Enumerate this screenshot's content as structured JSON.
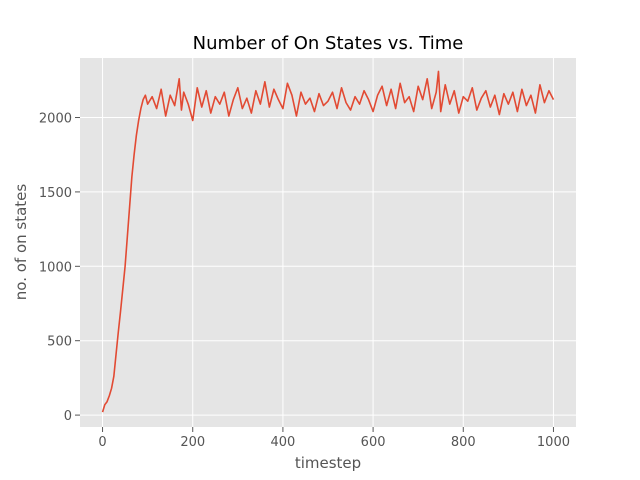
{
  "chart_data": {
    "type": "line",
    "title": "Number of On States vs. Time",
    "xlabel": "timestep",
    "ylabel": "no. of on states",
    "xlim": [
      -50,
      1050
    ],
    "ylim": [
      -80,
      2400
    ],
    "x_ticks": [
      0,
      200,
      400,
      600,
      800,
      1000
    ],
    "x_tick_labels": [
      "0",
      "200",
      "400",
      "600",
      "800",
      "1000"
    ],
    "y_ticks": [
      0,
      500,
      1000,
      1500,
      2000
    ],
    "y_tick_labels": [
      "0",
      "500",
      "1000",
      "1500",
      "2000"
    ],
    "grid": true,
    "legend": "none",
    "colors": {
      "plot_background": "#e5e5e5",
      "grid": "#ffffff",
      "line": "#e24a33",
      "tick_text": "#555555",
      "title_text": "#000000"
    },
    "series": [
      {
        "x": [
          0,
          5,
          10,
          15,
          20,
          25,
          30,
          35,
          40,
          45,
          50,
          55,
          60,
          65,
          70,
          75,
          80,
          85,
          90,
          95,
          100,
          110,
          120,
          130,
          140,
          150,
          160,
          170,
          175,
          180,
          190,
          200,
          210,
          220,
          230,
          240,
          250,
          260,
          270,
          280,
          290,
          300,
          310,
          320,
          330,
          340,
          350,
          360,
          370,
          380,
          390,
          400,
          410,
          420,
          430,
          440,
          450,
          460,
          470,
          480,
          490,
          500,
          510,
          520,
          530,
          540,
          550,
          560,
          570,
          580,
          590,
          600,
          610,
          620,
          630,
          640,
          650,
          660,
          670,
          680,
          690,
          700,
          710,
          720,
          730,
          740,
          745,
          750,
          760,
          770,
          780,
          790,
          800,
          810,
          820,
          830,
          840,
          850,
          860,
          870,
          880,
          890,
          900,
          910,
          920,
          930,
          940,
          950,
          960,
          970,
          980,
          990,
          1000
        ],
        "values": [
          20,
          70,
          90,
          130,
          180,
          260,
          410,
          560,
          700,
          850,
          1000,
          1200,
          1400,
          1600,
          1750,
          1880,
          1980,
          2060,
          2120,
          2150,
          2090,
          2140,
          2060,
          2190,
          2010,
          2150,
          2080,
          2260,
          2050,
          2170,
          2090,
          1980,
          2200,
          2070,
          2180,
          2030,
          2140,
          2090,
          2170,
          2010,
          2120,
          2200,
          2060,
          2130,
          2030,
          2180,
          2090,
          2240,
          2070,
          2190,
          2120,
          2060,
          2230,
          2150,
          2010,
          2170,
          2090,
          2130,
          2040,
          2160,
          2080,
          2110,
          2170,
          2060,
          2200,
          2100,
          2050,
          2140,
          2090,
          2180,
          2120,
          2040,
          2150,
          2210,
          2080,
          2190,
          2060,
          2230,
          2100,
          2140,
          2040,
          2210,
          2120,
          2260,
          2060,
          2170,
          2310,
          2040,
          2220,
          2090,
          2180,
          2030,
          2140,
          2110,
          2200,
          2050,
          2130,
          2180,
          2070,
          2150,
          2020,
          2160,
          2090,
          2170,
          2040,
          2190,
          2080,
          2150,
          2030,
          2220,
          2100,
          2180,
          2120
        ]
      }
    ]
  }
}
